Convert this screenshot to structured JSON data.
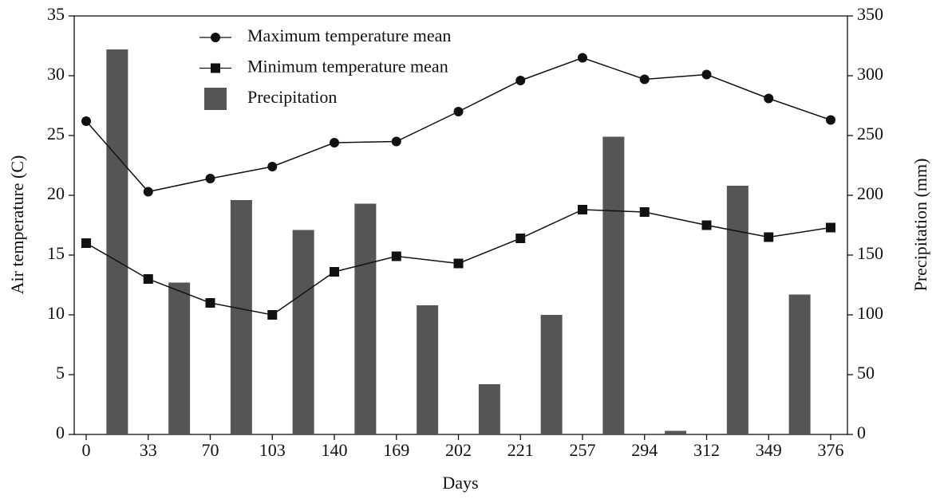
{
  "chart_data": {
    "type": "bar-line",
    "x_label": "Days",
    "y_label": "Air temperature (C)",
    "y2_label": "Precipitation (mm)",
    "categories": [
      "0",
      "33",
      "70",
      "103",
      "140",
      "169",
      "202",
      "221",
      "257",
      "294",
      "312",
      "349",
      "376"
    ],
    "series": [
      {
        "name": "Maximum temperature mean",
        "type": "line",
        "marker": "circle",
        "color": "#111111",
        "values": [
          26.2,
          20.3,
          21.4,
          22.4,
          24.4,
          24.5,
          27.0,
          29.6,
          31.5,
          29.7,
          30.1,
          28.1,
          26.3
        ]
      },
      {
        "name": "Minimum temperature mean",
        "type": "line",
        "marker": "square",
        "color": "#111111",
        "values": [
          16.0,
          13.0,
          11.0,
          10.0,
          13.6,
          14.9,
          14.3,
          16.4,
          18.8,
          18.6,
          17.5,
          16.5,
          17.3
        ]
      },
      {
        "name": "Precipitation",
        "type": "bar",
        "axis": "y2",
        "color": "#555555",
        "values": [
          322,
          127,
          196,
          171,
          193,
          108,
          42,
          100,
          249,
          3,
          208,
          117,
          null
        ]
      }
    ],
    "ylim": [
      0,
      35
    ],
    "yticks": [
      0,
      5,
      10,
      15,
      20,
      25,
      30,
      35
    ],
    "y2lim": [
      0,
      350
    ],
    "y2ticks": [
      0,
      50,
      100,
      150,
      200,
      250,
      300,
      350
    ]
  }
}
